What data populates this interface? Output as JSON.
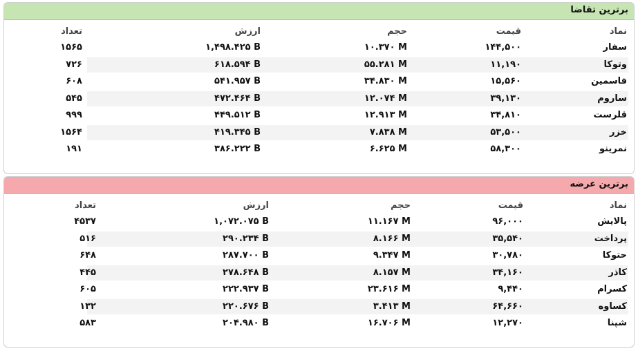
{
  "panels": [
    {
      "title": "برترین تقاضا",
      "columns": [
        "نماد",
        "قیمت",
        "حجم",
        "ارزش",
        "تعداد"
      ],
      "rows": [
        [
          "سفار",
          "۱۴۴,۵۰۰",
          "۱۰.۳۷۰ M",
          "۱,۴۹۸.۴۲۵ B",
          "۱۵۶۵"
        ],
        [
          "وتوکا",
          "۱۱,۱۹۰",
          "۵۵.۲۸۱ M",
          "۶۱۸.۵۹۴ B",
          "۷۲۶"
        ],
        [
          "فاسمین",
          "۱۵,۵۶۰",
          "۳۴.۸۳۰ M",
          "۵۴۱.۹۵۷ B",
          "۶۰۸"
        ],
        [
          "ساروم",
          "۳۹,۱۳۰",
          "۱۲.۰۷۴ M",
          "۴۷۲.۴۶۴ B",
          "۵۴۵"
        ],
        [
          "قلرست",
          "۳۴,۸۱۰",
          "۱۲.۹۱۳ M",
          "۴۴۹.۵۱۲ B",
          "۹۹۹"
        ],
        [
          "خزر",
          "۵۳,۵۰۰",
          "۷.۸۳۸ M",
          "۴۱۹.۳۴۵ B",
          "۱۵۶۴"
        ],
        [
          "نمرینو",
          "۵۸,۳۰۰",
          "۶.۶۲۵ M",
          "۳۸۶.۲۲۲ B",
          "۱۹۱"
        ]
      ]
    },
    {
      "title": "برترین عرضه",
      "columns": [
        "نماد",
        "قیمت",
        "حجم",
        "ارزش",
        "تعداد"
      ],
      "rows": [
        [
          "پالایش",
          "۹۶,۰۰۰",
          "۱۱.۱۶۷ M",
          "۱,۰۷۲.۰۷۵ B",
          "۴۵۳۷"
        ],
        [
          "پرداخت",
          "۳۵,۵۴۰",
          "۸.۱۶۶ M",
          "۲۹۰.۲۳۴ B",
          "۵۱۶"
        ],
        [
          "حتوکا",
          "۳۰,۷۸۰",
          "۹.۳۴۷ M",
          "۲۸۷.۷۰۰ B",
          "۶۴۸"
        ],
        [
          "کاذر",
          "۳۴,۱۶۰",
          "۸.۱۵۷ M",
          "۲۷۸.۶۴۸ B",
          "۴۴۵"
        ],
        [
          "کسرام",
          "۹,۴۴۰",
          "۲۳.۶۱۶ M",
          "۲۲۲.۹۳۷ B",
          "۶۰۵"
        ],
        [
          "کساوه",
          "۶۴,۶۶۰",
          "۳.۴۱۳ M",
          "۲۲۰.۶۷۶ B",
          "۱۳۲"
        ],
        [
          "شپنا",
          "۱۲,۲۷۰",
          "۱۶.۷۰۶ M",
          "۲۰۴.۹۸۰ B",
          "۵۸۳"
        ]
      ]
    }
  ]
}
